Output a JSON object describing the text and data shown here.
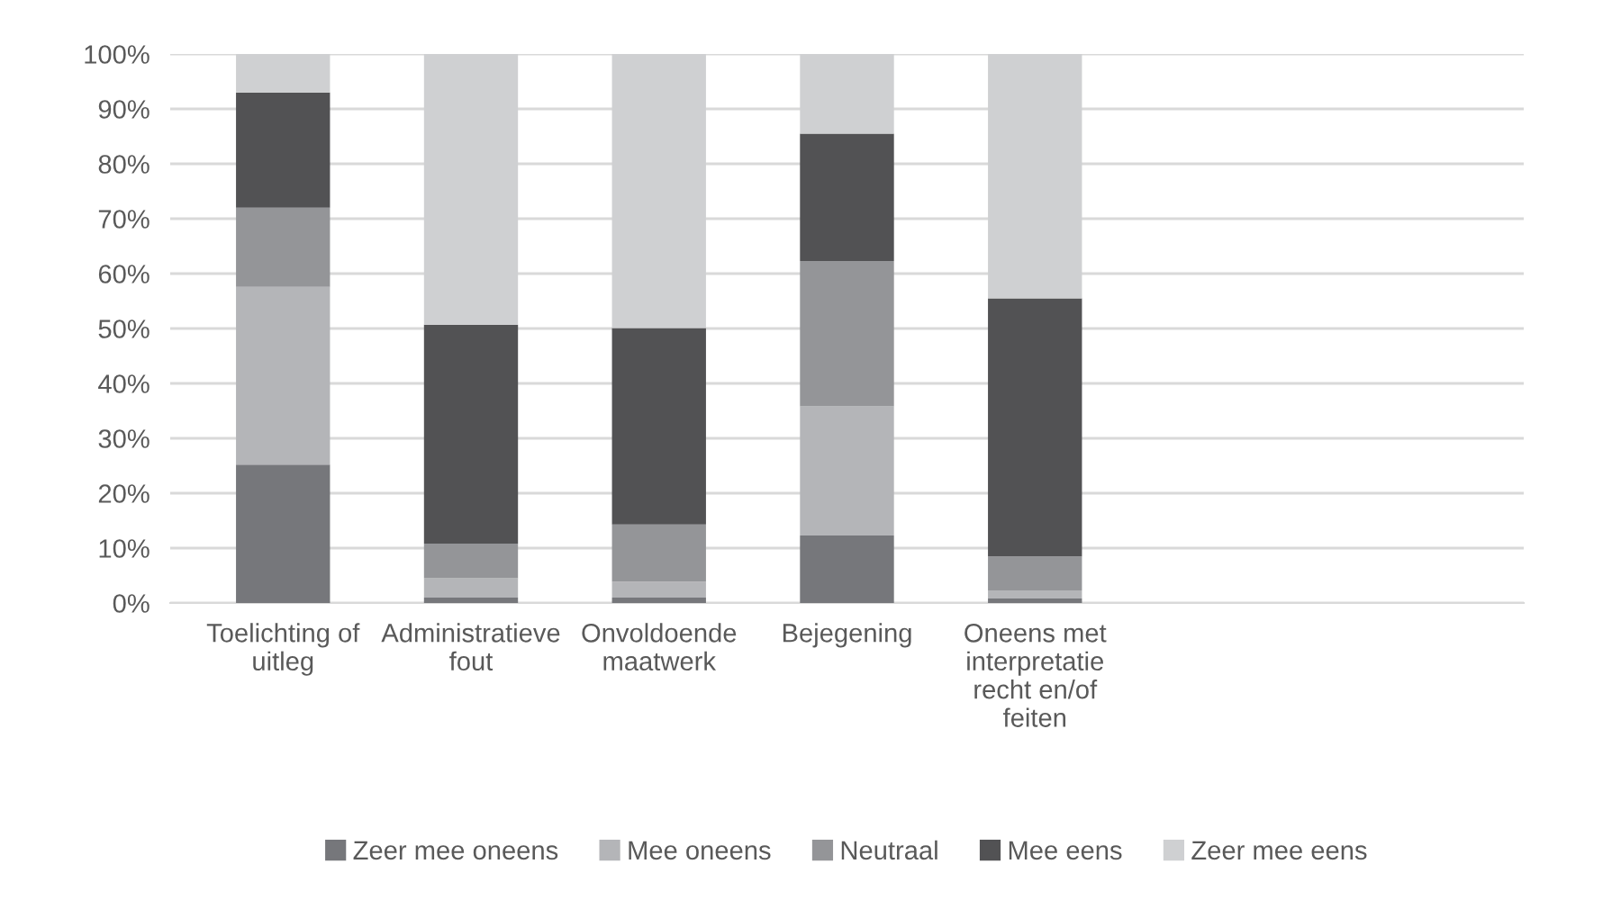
{
  "chart_data": {
    "type": "bar",
    "stacked": true,
    "categories": [
      "Toelichting of\nuitleg",
      "Administratieve\nfout",
      "Onvoldoende\nmaatwerk",
      "Bejegening",
      "Oneens met\ninterpretatie\nrecht en/of\nfeiten",
      null,
      null
    ],
    "series": [
      {
        "name": "Zeer mee oneens",
        "color": "#76777b",
        "values": [
          25.2,
          1.0,
          1.0,
          12.3,
          0.8,
          null,
          null
        ]
      },
      {
        "name": "Mee oneens",
        "color": "#b4b5b8",
        "values": [
          32.4,
          3.5,
          2.9,
          23.5,
          1.5,
          null,
          null
        ]
      },
      {
        "name": "Neutraal",
        "color": "#949598",
        "values": [
          14.4,
          6.3,
          10.4,
          26.5,
          6.2,
          null,
          null
        ]
      },
      {
        "name": "Mee eens",
        "color": "#525254",
        "values": [
          21.0,
          39.9,
          35.8,
          23.2,
          47.0,
          null,
          null
        ]
      },
      {
        "name": "Zeer mee eens",
        "color": "#cfd0d2",
        "values": [
          7.0,
          49.3,
          49.9,
          14.5,
          44.5,
          null,
          null
        ]
      }
    ],
    "ylim": [
      0,
      100
    ],
    "yticks": [
      {
        "value": 0,
        "label": "0%"
      },
      {
        "value": 10,
        "label": "10%"
      },
      {
        "value": 20,
        "label": "20%"
      },
      {
        "value": 30,
        "label": "30%"
      },
      {
        "value": 40,
        "label": "40%"
      },
      {
        "value": 50,
        "label": "50%"
      },
      {
        "value": 60,
        "label": "60%"
      },
      {
        "value": 70,
        "label": "70%"
      },
      {
        "value": 80,
        "label": "80%"
      },
      {
        "value": 90,
        "label": "90%"
      },
      {
        "value": 100,
        "label": "100%"
      }
    ],
    "grid": "y",
    "legend": "bottom"
  }
}
